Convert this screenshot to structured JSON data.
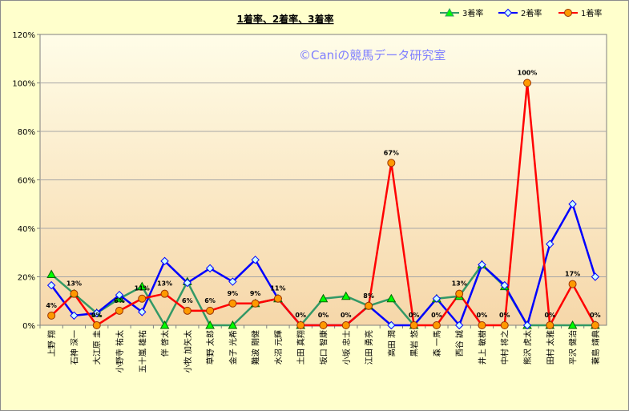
{
  "chart_data": {
    "type": "line",
    "title": "1着率、2着率、3着率",
    "watermark": "©Caniの競馬データ研究室",
    "xlabel": "",
    "ylabel": "",
    "ylim": [
      0,
      120
    ],
    "yticks": [
      "0%",
      "20%",
      "40%",
      "60%",
      "80%",
      "100%",
      "120%"
    ],
    "grid": "y",
    "legend_position": "top-right",
    "categories": [
      "上野 翔",
      "石神 深一",
      "大江原 圭",
      "小野寺 祐太",
      "五十嵐 雄祐",
      "伴 啓太",
      "小牧 加矢太",
      "草野 太郎",
      "金子 光希",
      "難波 剛健",
      "水沼 元輝",
      "土田 真翔",
      "坂口 智康",
      "小坂 忠士",
      "江田 勇亮",
      "高田 潤",
      "黒岩 悠",
      "森 一馬",
      "西谷 誠",
      "井上 敏樹",
      "中村 将之",
      "熊沢 虎太",
      "田村 太雅",
      "平沢 健治",
      "蓑島 靖典"
    ],
    "series": [
      {
        "name": "3着率",
        "color": "#339966",
        "marker": "triangle",
        "marker_fill": "#00ff00",
        "values": [
          21,
          13,
          5,
          11,
          16,
          0,
          18,
          0,
          0,
          9,
          11,
          0,
          11,
          12,
          8,
          11,
          0,
          11,
          12,
          25,
          16,
          0,
          0,
          0,
          0
        ]
      },
      {
        "name": "2着率",
        "color": "#0000ff",
        "marker": "diamond",
        "marker_fill": "#ccffff",
        "values": [
          16.5,
          4,
          5,
          12.5,
          5.5,
          26.5,
          17.5,
          23.5,
          18,
          27,
          11,
          0,
          0,
          0,
          8,
          0,
          0,
          11,
          0,
          25,
          16.5,
          0,
          33.5,
          50,
          20
        ]
      },
      {
        "name": "1着率",
        "color": "#ff0000",
        "marker": "circle",
        "marker_fill": "#ff9900",
        "values": [
          4,
          13,
          0,
          6,
          11,
          13,
          6,
          6,
          9,
          9,
          11,
          0,
          0,
          0,
          8,
          67,
          0,
          0,
          13,
          0,
          0,
          100,
          0,
          17,
          0
        ]
      }
    ],
    "data_labels": {
      "series": "1着率",
      "labels": [
        "4%",
        "13%",
        "0%",
        "6%",
        "11%",
        "13%",
        "6%",
        "6%",
        "9%",
        "9%",
        "11%",
        "0%",
        "0%",
        "0%",
        "8%",
        "67%",
        "0%",
        "0%",
        "13%",
        "0%",
        "0%",
        "100%",
        "0%",
        "17%",
        "0%"
      ]
    }
  }
}
